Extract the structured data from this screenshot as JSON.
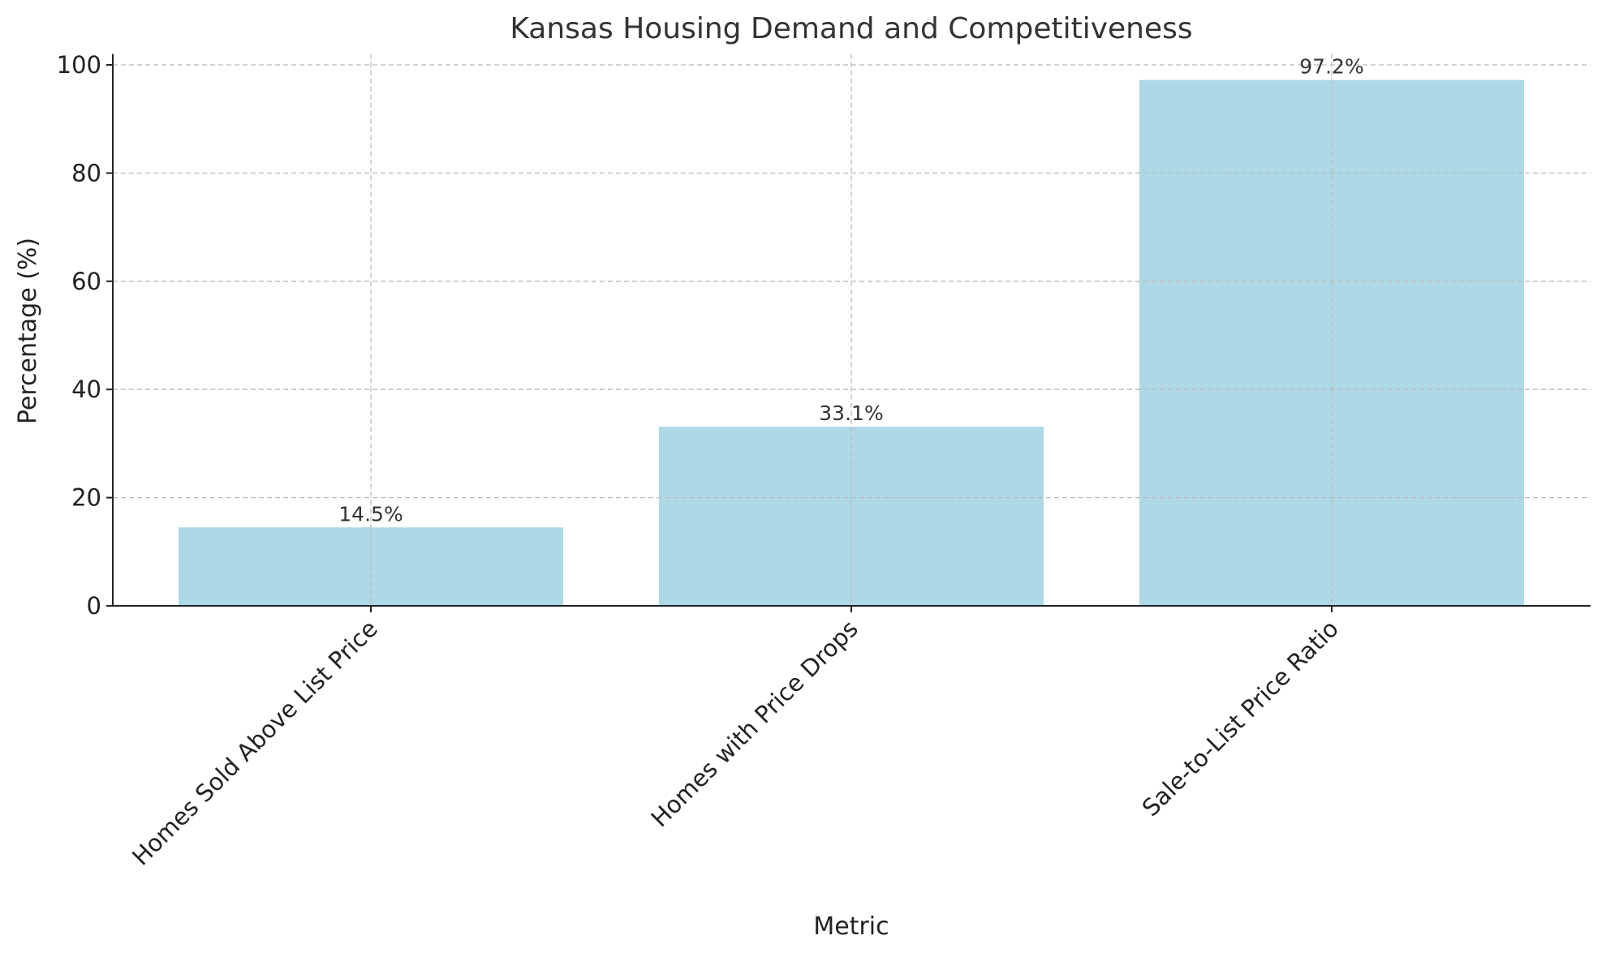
{
  "chart_data": {
    "type": "bar",
    "title": "Kansas Housing Demand and Competitiveness",
    "xlabel": "Metric",
    "ylabel": "Percentage (%)",
    "categories": [
      "Homes Sold Above List Price",
      "Homes with Price Drops",
      "Sale-to-List Price Ratio"
    ],
    "values": [
      14.5,
      33.1,
      97.2
    ],
    "data_labels": [
      "14.5%",
      "33.1%",
      "97.2%"
    ],
    "ylim": [
      0,
      102
    ],
    "yticks": [
      "0",
      "20",
      "40",
      "60",
      "80",
      "100"
    ],
    "grid": true,
    "bar_color": "#add8e6"
  }
}
